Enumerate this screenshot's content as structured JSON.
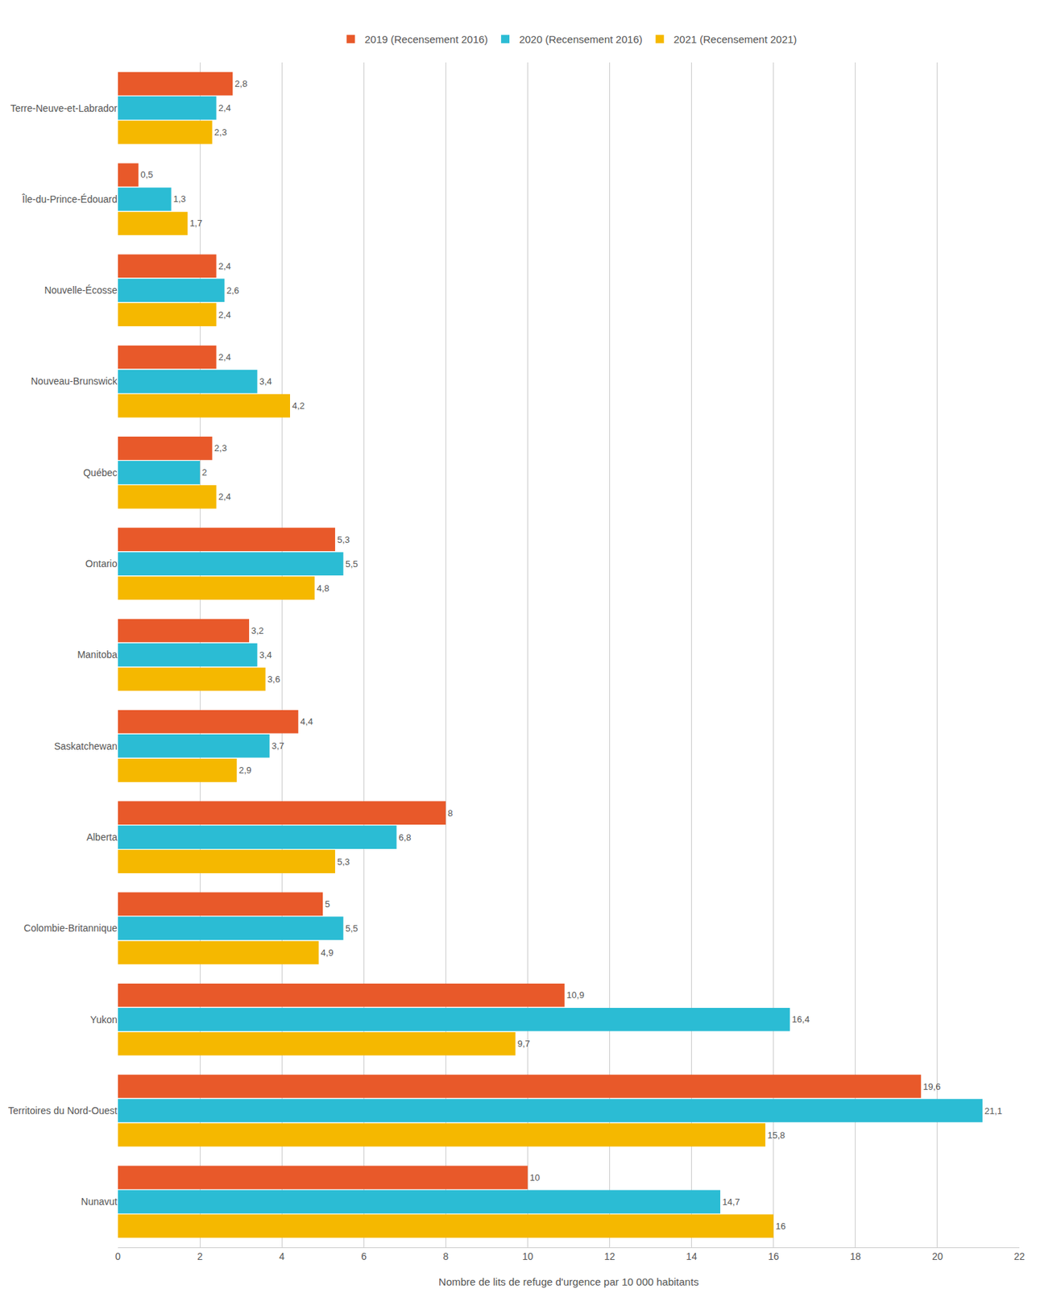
{
  "chart_data": {
    "type": "bar",
    "orientation": "horizontal",
    "x_label": "Nombre de lits de refuge d'urgence par 10 000 habitants",
    "categories": [
      "Nunavut",
      "Territoires du Nord-Ouest",
      "Yukon",
      "Colombie-Britannique",
      "Alberta",
      "Saskatchewan",
      "Manitoba",
      "Ontario",
      "Québec",
      "Nouveau-Brunswick",
      "Nouvelle-Écosse",
      "Île-du-Prince-Édouard",
      "Terre-Neuve-et-Labrador"
    ],
    "series": [
      {
        "name": "2019 (Recensement 2016)",
        "color": "#E8592A",
        "values": [
          10.0,
          19.6,
          10.9,
          5.0,
          8.0,
          4.4,
          3.2,
          5.3,
          2.3,
          2.4,
          2.4,
          0.5,
          2.8
        ],
        "value_labels": [
          "10",
          "19,6",
          "10,9",
          "5",
          "8",
          "4,4",
          "3,2",
          "5,3",
          "2,3",
          "2,4",
          "2,4",
          "0,5",
          "2,8"
        ]
      },
      {
        "name": "2020 (Recensement 2016)",
        "color": "#2BBCD4",
        "values": [
          14.7,
          21.1,
          16.4,
          5.5,
          6.8,
          3.7,
          3.4,
          5.5,
          2.0,
          3.4,
          2.6,
          1.3,
          2.4
        ],
        "value_labels": [
          "14,7",
          "21,1",
          "16,4",
          "5,5",
          "6,8",
          "3,7",
          "3,4",
          "5,5",
          "2",
          "3,4",
          "2,6",
          "1,3",
          "2,4"
        ]
      },
      {
        "name": "2021 (Recensement 2021)",
        "color": "#F5B800",
        "values": [
          16.0,
          15.8,
          9.7,
          4.9,
          5.3,
          2.9,
          3.6,
          4.8,
          2.4,
          4.2,
          2.4,
          1.7,
          2.3
        ],
        "value_labels": [
          "16",
          "15,8",
          "9,7",
          "4,9",
          "5,3",
          "2,9",
          "3,6",
          "4,8",
          "2,4",
          "4,2",
          "2,4",
          "1,7",
          "2,3"
        ]
      }
    ],
    "xlim": [
      0,
      22
    ],
    "xticks": [
      0,
      2,
      4,
      6,
      8,
      10,
      12,
      14,
      16,
      18,
      20,
      22
    ],
    "grid": true,
    "legend": "upper center",
    "data_labels": true
  }
}
